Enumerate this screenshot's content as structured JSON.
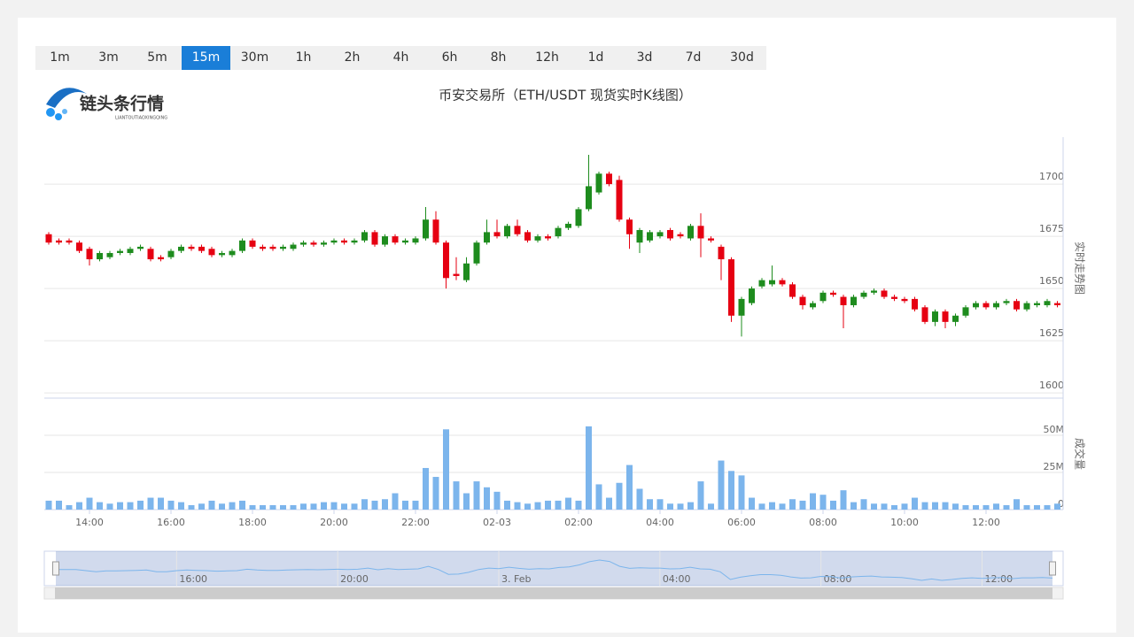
{
  "intervals": [
    "1m",
    "3m",
    "5m",
    "15m",
    "30m",
    "1h",
    "2h",
    "4h",
    "6h",
    "8h",
    "12h",
    "1d",
    "3d",
    "7d",
    "30d"
  ],
  "selected_interval": 3,
  "logo": {
    "text": "链头条行情",
    "subtext": "LIANTOUTIAOXINGQING"
  },
  "chart_data": {
    "type": "candlestick",
    "title": "币安交易所（ETH/USDT 现货实时K线图）",
    "y_label": "实时走势图",
    "volume_label": "成交量",
    "up_color": "#1e8c1e",
    "down_color": "#e60012",
    "volume_color": "#7cb5ec",
    "categories": [
      null,
      null,
      null,
      null,
      "14:00",
      null,
      null,
      null,
      null,
      null,
      null,
      null,
      "16:00",
      null,
      null,
      null,
      null,
      null,
      null,
      null,
      "18:00",
      null,
      null,
      null,
      null,
      null,
      null,
      null,
      "20:00",
      null,
      null,
      null,
      null,
      null,
      null,
      null,
      "22:00",
      null,
      null,
      null,
      null,
      null,
      null,
      null,
      "02-03",
      null,
      null,
      null,
      null,
      null,
      null,
      null,
      "02:00",
      null,
      null,
      null,
      null,
      null,
      null,
      null,
      "04:00",
      null,
      null,
      null,
      null,
      null,
      null,
      null,
      "06:00",
      null,
      null,
      null,
      null,
      null,
      null,
      null,
      "08:00",
      null,
      null,
      null,
      null,
      null,
      null,
      null,
      "10:00",
      null,
      null,
      null,
      null,
      null,
      null,
      null,
      "12:00",
      null,
      null,
      null,
      null,
      null,
      null,
      null
    ],
    "open": [
      1676,
      1673,
      1673,
      1672,
      1669,
      1664,
      1665,
      1667,
      1667,
      1669,
      1669,
      1665,
      1665,
      1668,
      1670,
      1670,
      1669,
      1666,
      1666,
      1668,
      1673,
      1670,
      1670,
      1669,
      1669,
      1671,
      1672,
      1671,
      1672,
      1673,
      1672,
      1673,
      1677,
      1671,
      1675,
      1672,
      1672,
      1674,
      1683,
      1672,
      1657,
      1654,
      1662,
      1672,
      1677,
      1675,
      1680,
      1677,
      1673,
      1675,
      1675,
      1679,
      1680,
      1688,
      1696,
      1705,
      1702,
      1683,
      1672,
      1673,
      1675,
      1678,
      1676,
      1674,
      1680,
      1674,
      1670,
      1664,
      1637,
      1643,
      1651,
      1652,
      1654,
      1652,
      1646,
      1641,
      1644,
      1648,
      1646,
      1642,
      1646,
      1648,
      1649,
      1646,
      1645,
      1645,
      1641,
      1634,
      1639,
      1634,
      1637,
      1641,
      1643,
      1641,
      1643,
      1644,
      1640,
      1642,
      1642,
      1643
    ],
    "high": [
      1677,
      1674,
      1674,
      1673,
      1670,
      1668,
      1668,
      1669,
      1670,
      1671,
      1670,
      1666,
      1669,
      1671,
      1671,
      1671,
      1670,
      1668,
      1669,
      1674,
      1674,
      1671,
      1671,
      1671,
      1672,
      1673,
      1673,
      1673,
      1674,
      1674,
      1674,
      1678,
      1678,
      1676,
      1676,
      1674,
      1675,
      1689,
      1687,
      1673,
      1665,
      1665,
      1673,
      1683,
      1683,
      1681,
      1683,
      1678,
      1676,
      1676,
      1680,
      1682,
      1689,
      1714,
      1706,
      1706,
      1704,
      1684,
      1679,
      1678,
      1678,
      1679,
      1677,
      1681,
      1686,
      1675,
      1671,
      1665,
      1646,
      1651,
      1655,
      1661,
      1655,
      1653,
      1647,
      1644,
      1649,
      1649,
      1647,
      1647,
      1649,
      1650,
      1650,
      1647,
      1646,
      1646,
      1642,
      1640,
      1640,
      1638,
      1642,
      1644,
      1644,
      1644,
      1645,
      1645,
      1644,
      1644,
      1645,
      1644
    ],
    "low": [
      1671,
      1671,
      1671,
      1667,
      1661,
      1663,
      1664,
      1666,
      1666,
      1668,
      1663,
      1663,
      1664,
      1667,
      1668,
      1667,
      1665,
      1665,
      1665,
      1667,
      1669,
      1668,
      1668,
      1668,
      1668,
      1670,
      1670,
      1670,
      1671,
      1671,
      1671,
      1672,
      1670,
      1670,
      1671,
      1671,
      1671,
      1673,
      1671,
      1650,
      1654,
      1653,
      1661,
      1671,
      1674,
      1674,
      1675,
      1672,
      1672,
      1673,
      1674,
      1678,
      1679,
      1687,
      1695,
      1699,
      1682,
      1669,
      1667,
      1672,
      1674,
      1673,
      1674,
      1673,
      1665,
      1672,
      1654,
      1634,
      1627,
      1642,
      1650,
      1651,
      1651,
      1645,
      1640,
      1640,
      1643,
      1646,
      1631,
      1641,
      1645,
      1647,
      1645,
      1644,
      1643,
      1639,
      1633,
      1632,
      1631,
      1632,
      1636,
      1640,
      1640,
      1640,
      1642,
      1639,
      1639,
      1641,
      1641,
      1641
    ],
    "close": [
      1672,
      1672,
      1672,
      1668,
      1664,
      1667,
      1667,
      1668,
      1669,
      1670,
      1664,
      1664,
      1668,
      1670,
      1669,
      1668,
      1666,
      1667,
      1668,
      1673,
      1670,
      1669,
      1669,
      1670,
      1671,
      1672,
      1671,
      1672,
      1673,
      1672,
      1673,
      1677,
      1671,
      1675,
      1672,
      1673,
      1674,
      1683,
      1672,
      1655,
      1656,
      1662,
      1672,
      1677,
      1675,
      1680,
      1676,
      1673,
      1675,
      1674,
      1679,
      1681,
      1688,
      1699,
      1705,
      1700,
      1683,
      1676,
      1678,
      1677,
      1677,
      1674,
      1675,
      1680,
      1674,
      1673,
      1664,
      1637,
      1645,
      1650,
      1654,
      1654,
      1652,
      1646,
      1642,
      1643,
      1648,
      1647,
      1642,
      1646,
      1648,
      1649,
      1646,
      1645,
      1644,
      1640,
      1634,
      1639,
      1634,
      1637,
      1641,
      1643,
      1641,
      1643,
      1644,
      1640,
      1643,
      1643,
      1644,
      1642
    ],
    "volume": [
      6,
      6,
      3,
      5,
      8,
      5,
      4,
      5,
      5,
      6,
      8,
      8,
      6,
      5,
      3,
      4,
      6,
      4,
      5,
      6,
      3,
      3,
      3,
      3,
      3,
      4,
      4,
      5,
      5,
      4,
      4,
      7,
      6,
      7,
      11,
      6,
      6,
      28,
      22,
      54,
      19,
      11,
      19,
      15,
      12,
      6,
      5,
      4,
      5,
      6,
      6,
      8,
      6,
      56,
      17,
      8,
      18,
      30,
      14,
      7,
      7,
      4,
      4,
      5,
      19,
      4,
      33,
      26,
      23,
      8,
      4,
      5,
      4,
      7,
      6,
      11,
      10,
      6,
      13,
      5,
      7,
      4,
      4,
      3,
      4,
      8,
      5,
      5,
      5,
      4,
      3,
      3,
      3,
      4,
      3,
      7,
      3,
      3,
      3,
      4
    ],
    "ylim": [
      1597.5,
      1722.5
    ],
    "yticks": [
      1600,
      1625,
      1650,
      1675,
      1700
    ],
    "volume_ylim": [
      0,
      75
    ],
    "volume_ticks": [
      0,
      {
        "value": 25,
        "label": "25M"
      },
      {
        "value": 50,
        "label": "50M"
      }
    ],
    "navigator_ticks": [
      {
        "value": 12,
        "label": "16:00"
      },
      {
        "value": 28,
        "label": "20:00"
      },
      {
        "value": 44,
        "label": "3. Feb"
      },
      {
        "value": 60,
        "label": "04:00"
      },
      {
        "value": 76,
        "label": "08:00"
      },
      {
        "value": 92,
        "label": "12:00"
      }
    ],
    "grid": true
  }
}
